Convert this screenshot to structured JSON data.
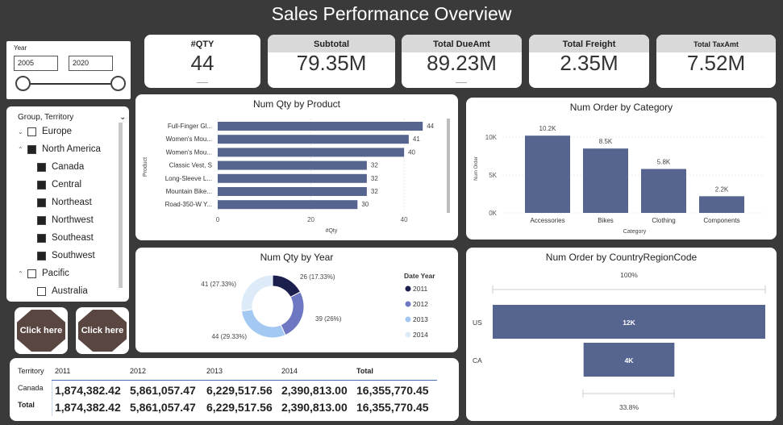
{
  "title": "Sales Performance Overview",
  "kpis": [
    {
      "label": "#QTY",
      "value": "44"
    },
    {
      "label": "Subtotal",
      "value": "79.35M"
    },
    {
      "label": "Total DueAmt",
      "value": "89.23M"
    },
    {
      "label": "Total Freight",
      "value": "2.35M"
    },
    {
      "label": "Total TaxAmt",
      "value": "7.52M"
    }
  ],
  "year_slicer": {
    "label": "Year",
    "from": "2005",
    "to": "2020"
  },
  "territory": {
    "header": "Group, Territory",
    "items": [
      {
        "label": "Europe",
        "level": 0,
        "toggle": "⌄",
        "checked": false
      },
      {
        "label": "North America",
        "level": 0,
        "toggle": "⌃",
        "checked": true
      },
      {
        "label": "Canada",
        "level": 1,
        "toggle": "",
        "checked": true
      },
      {
        "label": "Central",
        "level": 1,
        "toggle": "",
        "checked": true
      },
      {
        "label": "Northeast",
        "level": 1,
        "toggle": "",
        "checked": true
      },
      {
        "label": "Northwest",
        "level": 1,
        "toggle": "",
        "checked": true
      },
      {
        "label": "Southeast",
        "level": 1,
        "toggle": "",
        "checked": true
      },
      {
        "label": "Southwest",
        "level": 1,
        "toggle": "",
        "checked": true
      },
      {
        "label": "Pacific",
        "level": 0,
        "toggle": "⌃",
        "checked": false
      },
      {
        "label": "Australia",
        "level": 1,
        "toggle": "",
        "checked": false
      }
    ]
  },
  "buttons": [
    {
      "label": "Click here"
    },
    {
      "label": "Click here"
    }
  ],
  "colors": {
    "bar": "#56658f",
    "y2011": "#1b1f4e",
    "y2012": "#6e77c1",
    "y2013": "#a3c8f2",
    "y2014": "#ddeaf8"
  },
  "chart_data": [
    {
      "type": "bar",
      "orientation": "horizontal",
      "title": "Num Qty by Product",
      "xlabel": "#Qty",
      "ylabel": "Product",
      "categories": [
        "Full-Finger Gl...",
        "Women's Mou...",
        "Women's Mou...",
        "Classic Vest, S",
        "Long-Sleeve L...",
        "Mountain Bike...",
        "Road-350-W Y..."
      ],
      "values": [
        44,
        41,
        40,
        32,
        32,
        32,
        30
      ],
      "xlim": [
        0,
        45
      ],
      "xticks": [
        "0",
        "20",
        "40"
      ]
    },
    {
      "type": "bar",
      "title": "Num Order by Category",
      "xlabel": "Category",
      "ylabel": "Num Order",
      "categories": [
        "Accessories",
        "Bikes",
        "Clothing",
        "Components"
      ],
      "values": [
        10200,
        8500,
        5800,
        2200
      ],
      "value_labels": [
        "10.2K",
        "8.5K",
        "5.8K",
        "2.2K"
      ],
      "ylim": [
        0,
        11500
      ],
      "yticks": [
        "0K",
        "5K",
        "10K"
      ]
    },
    {
      "type": "pie",
      "donut": true,
      "title": "Num Qty by Year",
      "legend_title": "Date Year",
      "legend_position": "right",
      "labels": [
        "2011",
        "2012",
        "2013",
        "2014"
      ],
      "values": [
        26,
        39,
        44,
        41
      ],
      "value_labels": [
        "26 (17.33%)",
        "39 (26%)",
        "44 (29.33%)",
        "41 (27.33%)"
      ]
    },
    {
      "type": "bar",
      "orientation": "horizontal",
      "title": "Num Order by CountryRegionCode",
      "categories": [
        "US",
        "CA"
      ],
      "values": [
        12000,
        4000
      ],
      "value_labels": [
        "12K",
        "4K"
      ],
      "top_label": "100%",
      "bottom_label": "33.8%"
    }
  ],
  "table": {
    "header": [
      "Territory",
      "2011",
      "2012",
      "2013",
      "2014",
      "Total"
    ],
    "rows": [
      {
        "name": "Canada",
        "values": [
          "1,874,382.42",
          "5,861,057.47",
          "6,229,517.56",
          "2,390,813.00",
          "16,355,770.45"
        ]
      },
      {
        "name": "Total",
        "values": [
          "1,874,382.42",
          "5,861,057.47",
          "6,229,517.56",
          "2,390,813.00",
          "16,355,770.45"
        ]
      }
    ]
  }
}
